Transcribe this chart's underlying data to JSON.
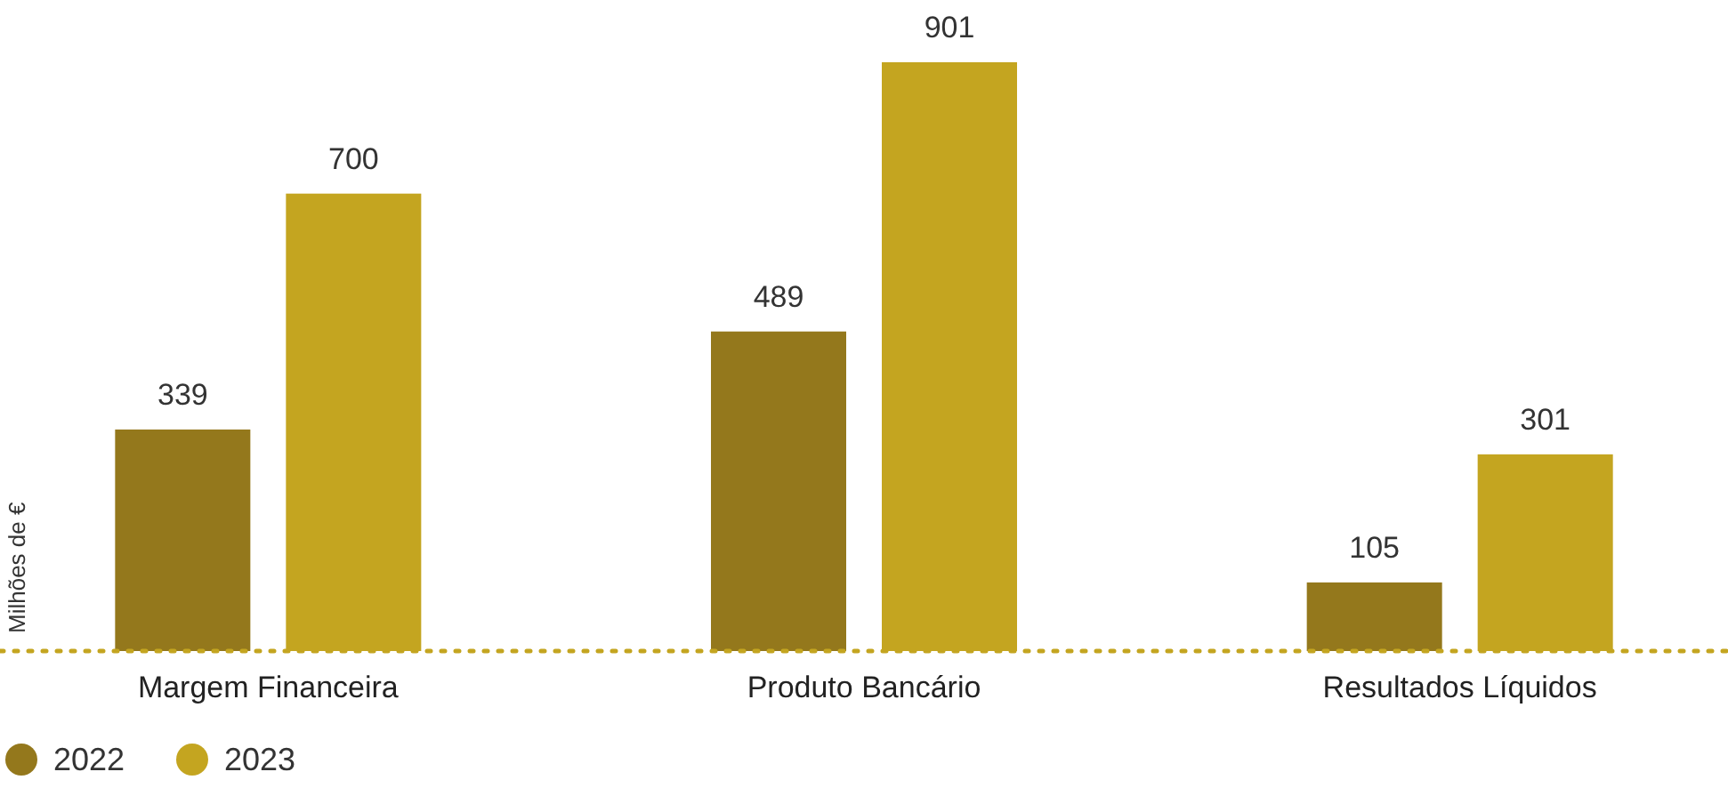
{
  "chart_data": {
    "type": "bar",
    "ylabel": "Milhões de €",
    "categories": [
      "Margem Financeira",
      "Produto Bancário",
      "Resultados Líquidos"
    ],
    "series": [
      {
        "name": "2022",
        "color": "#94781c",
        "values": [
          339,
          489,
          105
        ]
      },
      {
        "name": "2023",
        "color": "#c4a520",
        "values": [
          700,
          901,
          301
        ]
      }
    ],
    "data_labels": true,
    "legend": "bottom left"
  }
}
